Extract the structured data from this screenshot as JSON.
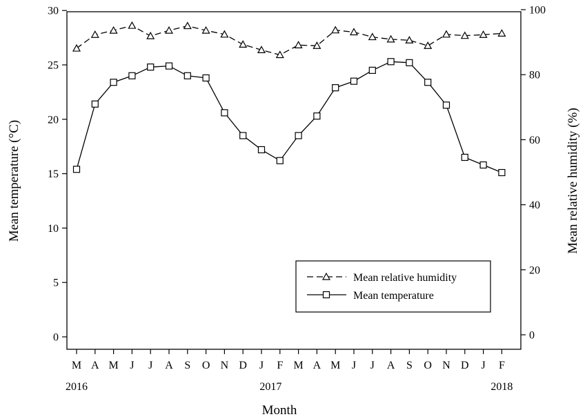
{
  "chart_data": {
    "type": "line",
    "xlabel": "Month",
    "ylabel_left": "Mean temperature (°C)",
    "ylabel_right": "Mean relative humidity (%)",
    "categories": [
      "M",
      "A",
      "M",
      "J",
      "J",
      "A",
      "S",
      "O",
      "N",
      "D",
      "J",
      "F",
      "M",
      "A",
      "M",
      "J",
      "J",
      "A",
      "S",
      "O",
      "N",
      "D",
      "J",
      "F"
    ],
    "year_labels": [
      {
        "index": 0,
        "label": "2016"
      },
      {
        "index": 10.5,
        "label": "2017"
      },
      {
        "index": 23,
        "label": "2018"
      }
    ],
    "ylim_left": [
      0,
      30
    ],
    "yticks_left": [
      0,
      5,
      10,
      15,
      20,
      25,
      30
    ],
    "ylim_right": [
      0,
      100
    ],
    "yticks_right": [
      0,
      20,
      40,
      60,
      80,
      100
    ],
    "grid": false,
    "legend_position": "bottom-right",
    "series": [
      {
        "name": "Mean relative humidity",
        "axis": "right",
        "line_style": "dashed",
        "marker": "triangle",
        "values": [
          88.1,
          92.3,
          93.6,
          95.1,
          91.9,
          93.6,
          95.0,
          93.6,
          92.4,
          89.3,
          87.6,
          86.1,
          89.1,
          88.9,
          93.7,
          93.1,
          91.6,
          90.9,
          90.6,
          88.9,
          92.4,
          92.0,
          92.3,
          92.7
        ]
      },
      {
        "name": "Mean temperature",
        "axis": "left",
        "line_style": "solid",
        "marker": "square",
        "values": [
          15.4,
          21.4,
          23.4,
          24.0,
          24.8,
          24.9,
          24.0,
          23.8,
          20.6,
          18.5,
          17.2,
          16.2,
          18.5,
          20.3,
          22.9,
          23.5,
          24.5,
          25.3,
          25.2,
          23.4,
          21.3,
          16.5,
          15.8,
          15.1
        ]
      }
    ]
  }
}
